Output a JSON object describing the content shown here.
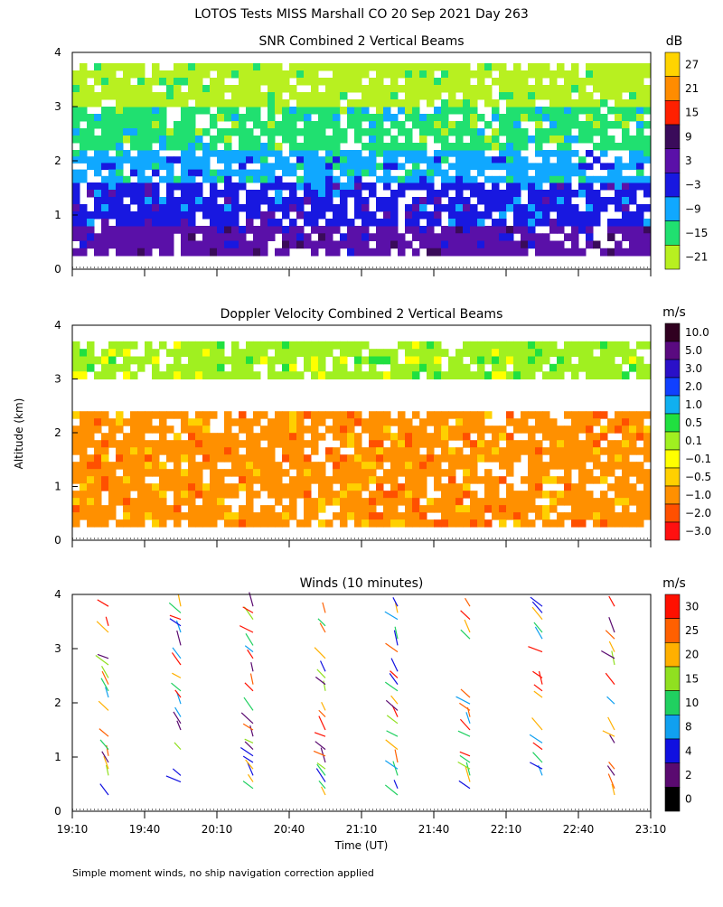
{
  "title": "LOTOS Tests MISS Marshall CO  20 Sep 2021 Day 263",
  "ylabel": "Altitude (km)",
  "xlabel": "Time (UT)",
  "footnote": "Simple moment winds, no ship navigation correction applied",
  "chart_data": [
    {
      "type": "heatmap",
      "title": "SNR Combined 2 Vertical Beams",
      "units": "dB",
      "x_ticks": [
        "19:10",
        "19:40",
        "20:10",
        "20:40",
        "21:10",
        "21:40",
        "22:10",
        "22:40",
        "23:10"
      ],
      "y_ticks": [
        "0",
        "1",
        "2",
        "3",
        "4"
      ],
      "ylim": [
        0,
        4
      ],
      "colorbar": {
        "labels": [
          "27",
          "21",
          "15",
          "9",
          "3",
          "−3",
          "−9",
          "−15",
          "−21"
        ],
        "colors": [
          "#ffd400",
          "#ff8c00",
          "#ff2000",
          "#3a0b5a",
          "#5a10a8",
          "#1818e0",
          "#10a8ff",
          "#20e070",
          "#b8f020"
        ]
      },
      "profile": [
        {
          "from": 0.25,
          "to": 0.8,
          "value": "3"
        },
        {
          "from": 0.8,
          "to": 1.6,
          "value": "-3"
        },
        {
          "from": 1.6,
          "to": 2.2,
          "value": "-9"
        },
        {
          "from": 2.2,
          "to": 3.0,
          "value": "-15"
        },
        {
          "from": 3.0,
          "to": 3.8,
          "value": "-21"
        }
      ]
    },
    {
      "type": "heatmap",
      "title": "Doppler Velocity Combined 2 Vertical Beams",
      "units": "m/s",
      "x_ticks": [
        "19:10",
        "19:40",
        "20:10",
        "20:40",
        "21:10",
        "21:40",
        "22:10",
        "22:40",
        "23:10"
      ],
      "y_ticks": [
        "0",
        "1",
        "2",
        "3",
        "4"
      ],
      "ylim": [
        0,
        4
      ],
      "colorbar": {
        "labels": [
          "10.0",
          "5.0",
          "3.0",
          "2.0",
          "1.0",
          "0.5",
          "0.1",
          "−0.1",
          "−0.5",
          "−1.0",
          "−2.0",
          "−3.0"
        ],
        "colors": [
          "#300020",
          "#5a0a80",
          "#2a10c8",
          "#1040ff",
          "#10b0f0",
          "#20e040",
          "#a0f020",
          "#ffff00",
          "#ffd000",
          "#ff9000",
          "#ff5000",
          "#ff1010"
        ]
      },
      "profile": [
        {
          "from": 0.25,
          "to": 2.4,
          "value": "-1.0"
        },
        {
          "from": 3.0,
          "to": 3.7,
          "value": "0.1"
        }
      ]
    },
    {
      "type": "wind_barbs",
      "title": "Winds (10 minutes)",
      "units": "m/s",
      "x_ticks": [
        "19:10",
        "19:40",
        "20:10",
        "20:40",
        "21:10",
        "21:40",
        "22:10",
        "22:40",
        "23:10"
      ],
      "y_ticks": [
        "0",
        "1",
        "2",
        "3",
        "4"
      ],
      "ylim": [
        0,
        4
      ],
      "colorbar": {
        "labels": [
          "30",
          "25",
          "20",
          "15",
          "10",
          "8",
          "4",
          "2",
          "0"
        ],
        "colors": [
          "#ff1000",
          "#ff6000",
          "#ffb000",
          "#90e020",
          "#20d060",
          "#10a0f0",
          "#1010e0",
          "#5a0a70",
          "#000000"
        ]
      },
      "profile_times": [
        "19:25",
        "19:55",
        "20:25",
        "20:55",
        "21:25",
        "21:55",
        "22:25",
        "22:55"
      ]
    }
  ]
}
